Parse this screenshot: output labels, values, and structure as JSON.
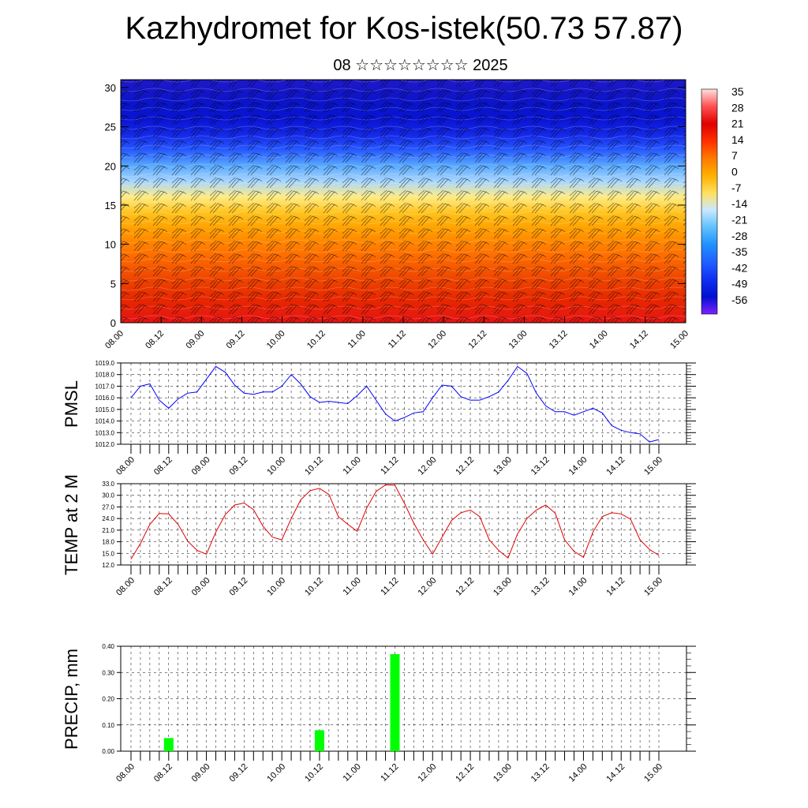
{
  "title": "Kazhydromet for Kos-istek(50.73 57.87)",
  "subtitle": "08 ☆☆☆☆☆☆☆☆ 2025",
  "time_ticks": [
    "08.00",
    "08.12",
    "09.00",
    "09.12",
    "10.00",
    "10.12",
    "11.00",
    "11.12",
    "12.00",
    "12.12",
    "13.00",
    "13.12",
    "14.00",
    "14.12",
    "15.00"
  ],
  "chart_data": [
    {
      "type": "heatmap",
      "y_ticks": [
        "0",
        "5",
        "10",
        "15",
        "20",
        "25",
        "30"
      ],
      "ylim": [
        0,
        31
      ],
      "colorbar": {
        "labels": [
          "35",
          "28",
          "21",
          "14",
          "7",
          "0",
          "-7",
          "-14",
          "-21",
          "-28",
          "-35",
          "-42",
          "-49",
          "-56"
        ],
        "colors": [
          "#ffe0e0",
          "#ff5050",
          "#e00000",
          "#ff3000",
          "#ff7a00",
          "#ffb000",
          "#ffe060",
          "#c8e8ff",
          "#60c0ff",
          "#2090ff",
          "#2060ff",
          "#1030f0",
          "#0010d0",
          "#8020ff"
        ]
      },
      "profile_levels": [
        0,
        3,
        6,
        9,
        12,
        14,
        16,
        18,
        20,
        22,
        24,
        26,
        28,
        31
      ],
      "profile_colors": [
        "#e61414",
        "#e62800",
        "#f04b00",
        "#ff7300",
        "#ffa000",
        "#ffc31e",
        "#ffeb82",
        "#aad7ff",
        "#5aaaff",
        "#285aff",
        "#1428e6",
        "#0a14d2",
        "#0a14c8",
        "#1e19c8"
      ]
    },
    {
      "type": "line",
      "ylabel": "PMSL",
      "y_ticks": [
        "1019.0",
        "1018.0",
        "1017.0",
        "1016.0",
        "1015.0",
        "1014.0",
        "1013.0",
        "1012.0"
      ],
      "ylim": [
        1012,
        1019
      ],
      "color": "#0000ff",
      "values": [
        1016.0,
        1017.0,
        1017.2,
        1015.8,
        1015.1,
        1015.9,
        1016.4,
        1016.5,
        1017.6,
        1018.7,
        1018.2,
        1017.1,
        1016.4,
        1016.3,
        1016.5,
        1016.5,
        1017.0,
        1018.0,
        1017.2,
        1016.1,
        1015.6,
        1015.7,
        1015.6,
        1015.5,
        1016.2,
        1017.0,
        1015.8,
        1014.6,
        1014.0,
        1014.3,
        1014.7,
        1014.8,
        1016.0,
        1017.1,
        1017.0,
        1016.1,
        1015.8,
        1015.8,
        1016.1,
        1016.5,
        1017.5,
        1018.7,
        1018.1,
        1016.4,
        1015.3,
        1014.8,
        1014.8,
        1014.5,
        1014.8,
        1015.1,
        1014.7,
        1013.6,
        1013.2,
        1013.0,
        1012.9,
        1012.2,
        1012.4
      ]
    },
    {
      "type": "line",
      "ylabel": "TEMP at 2 M",
      "y_ticks": [
        "33.0",
        "30.0",
        "27.0",
        "24.0",
        "21.0",
        "18.0",
        "15.0",
        "12.0"
      ],
      "ylim": [
        12,
        33
      ],
      "color": "#e00000",
      "values": [
        13.5,
        17.5,
        22.5,
        25.3,
        25.2,
        22.5,
        18.2,
        15.8,
        14.8,
        20.5,
        25.0,
        27.5,
        28.0,
        26.3,
        22.0,
        19.2,
        18.5,
        24.0,
        28.8,
        31.2,
        31.8,
        30.2,
        24.5,
        22.5,
        20.7,
        26.7,
        31.0,
        32.7,
        32.6,
        28.0,
        22.8,
        18.5,
        14.8,
        19.2,
        23.5,
        25.5,
        26.2,
        24.5,
        18.5,
        15.8,
        13.8,
        20.0,
        24.0,
        26.2,
        27.5,
        25.4,
        18.5,
        15.5,
        14.0,
        20.5,
        24.5,
        25.5,
        25.2,
        23.8,
        18.5,
        16.0,
        14.5
      ]
    },
    {
      "type": "bar",
      "ylabel": "PRECIP, mm",
      "y_ticks": [
        "0.40",
        "0.30",
        "0.20",
        "0.10",
        "0.00"
      ],
      "ylim": [
        0,
        0.4
      ],
      "color": "#00ff00",
      "bars": [
        {
          "x": "08.12",
          "value": 0.05
        },
        {
          "x": "10.12",
          "value": 0.08
        },
        {
          "x": "11.12",
          "value": 0.37
        }
      ]
    }
  ]
}
